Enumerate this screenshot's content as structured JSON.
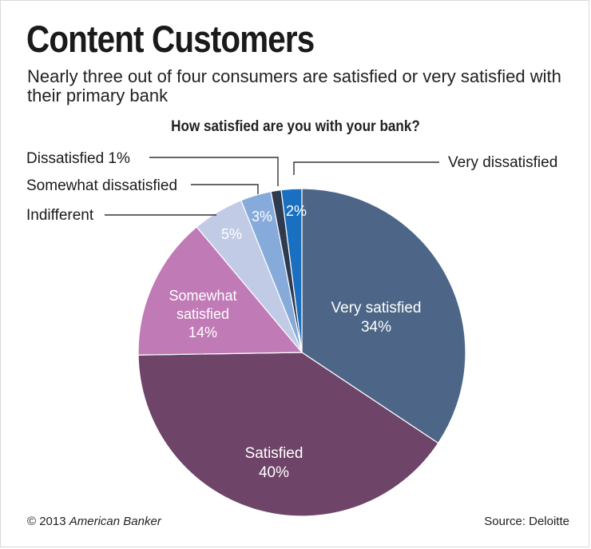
{
  "header": {
    "title": "Content Customers",
    "subtitle": "Nearly three out of four consumers are satisfied or very satisfied with their primary bank"
  },
  "chart_data": {
    "type": "pie",
    "title": "How satisfied are you with your bank?",
    "slices": [
      {
        "label": "Very satisfied",
        "value": 34,
        "display": "34%",
        "color": "#4d6687"
      },
      {
        "label": "Satisfied",
        "value": 40,
        "display": "40%",
        "color": "#6e4468"
      },
      {
        "label": "Somewhat satisfied",
        "value": 14,
        "display": "14%",
        "color": "#c07ab5"
      },
      {
        "label": "Indifferent",
        "value": 5,
        "display": "5%",
        "color": "#c2cbe6"
      },
      {
        "label": "Somewhat dissatisfied",
        "value": 3,
        "display": "3%",
        "color": "#86abdb"
      },
      {
        "label": "Dissatisfied",
        "value": 1,
        "display": "1%",
        "color": "#2e3a4f"
      },
      {
        "label": "Very dissatisfied",
        "value": 2,
        "display": "2%",
        "color": "#1a6fc0"
      }
    ],
    "callout_labels": {
      "very_dissatisfied": "Very dissatisfied",
      "dissatisfied": "Dissatisfied 1%",
      "somewhat_dissatisfied": "Somewhat dissatisfied",
      "indifferent": "Indifferent"
    },
    "inside_labels": {
      "very_satisfied": [
        "Very satisfied",
        "34%"
      ],
      "satisfied": [
        "Satisfied",
        "40%"
      ],
      "somewhat_satisfied": [
        "Somewhat",
        "satisfied",
        "14%"
      ]
    }
  },
  "footer": {
    "copyright_prefix": "© 2013 ",
    "copyright_publisher": "American Banker",
    "source": "Source: Deloitte"
  }
}
